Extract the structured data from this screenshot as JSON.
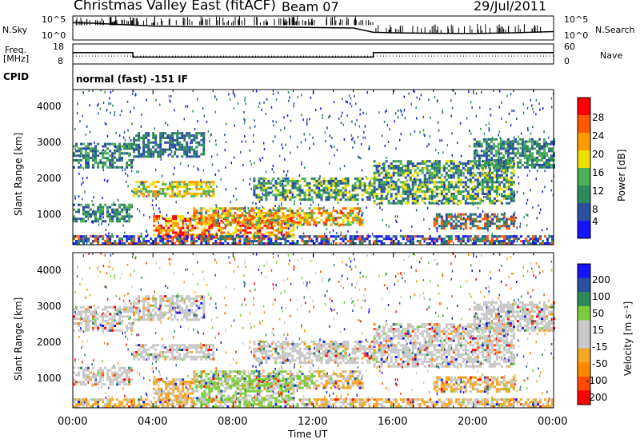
{
  "header": {
    "title": "Christmas Valley East (fitACF)",
    "beam": "Beam 07",
    "date": "29/Jul/2011"
  },
  "left_labels": {
    "nsky": "N.Sky",
    "freq_line1": "Freq.",
    "freq_line2": "[MHz]",
    "cpid": "CPID"
  },
  "right_labels": {
    "nsearch": "N.Search",
    "nave": "Nave"
  },
  "cpid_text": "normal (fast) -151 IF",
  "colors": {
    "power": [
      "#1414ff",
      "#2a50a0",
      "#2e8a5a",
      "#4fae58",
      "#f0e000",
      "#ff9a00",
      "#ff5a00",
      "#ff0000"
    ],
    "velocity": [
      "#ff0000",
      "#ff4a00",
      "#ff8a00",
      "#f5a623",
      "#c8c8c8",
      "#c8c8c8",
      "#7ccd3c",
      "#2e8b57",
      "#2a50a0",
      "#1414ff"
    ],
    "ground": "#c8c8c8"
  },
  "chart_data": [
    {
      "type": "line",
      "name_label": "N.Sky",
      "y_ticks": [
        "10^5",
        "10^0"
      ],
      "right_ticks": [
        "10^5",
        "10^0"
      ],
      "series": [
        {
          "name": "N.Sky",
          "x": [
            0,
            1,
            2,
            3,
            4,
            6,
            8,
            10,
            12,
            14,
            15,
            16,
            18,
            20,
            22,
            24
          ],
          "y": [
            0.72,
            0.7,
            0.66,
            0.62,
            0.58,
            0.55,
            0.55,
            0.54,
            0.52,
            0.5,
            0.32,
            0.3,
            0.28,
            0.27,
            0.3,
            0.35
          ]
        }
      ],
      "right_label": "N.Search"
    },
    {
      "type": "line",
      "y_ticks": [
        "18",
        "8"
      ],
      "right_ticks": [
        "60",
        "0"
      ],
      "series": [
        {
          "name": "Freq.",
          "x": [
            0,
            3,
            3,
            15,
            15,
            24
          ],
          "y": [
            14,
            14,
            10.8,
            10.8,
            14,
            14
          ]
        },
        {
          "name": "Nave",
          "x": [
            0,
            24
          ],
          "y": [
            11.5,
            11.5
          ]
        }
      ]
    },
    {
      "type": "heatmap",
      "ylabel": "Slant Range [km]",
      "y_ticks": [
        "4000",
        "3000",
        "2000",
        "1000"
      ],
      "ylim": [
        180,
        4500
      ],
      "xlim": [
        0,
        24
      ],
      "colorbar_label": "Power [dB]",
      "colorbar_ticks": [
        "28",
        "24",
        "20",
        "16",
        "12",
        "8",
        "4"
      ],
      "colorbar_range": [
        0,
        32
      ]
    },
    {
      "type": "heatmap",
      "ylabel": "Slant Range [km]",
      "y_ticks": [
        "4000",
        "3000",
        "2000",
        "1000"
      ],
      "ylim": [
        180,
        4500
      ],
      "xlim": [
        0,
        24
      ],
      "colorbar_label": "Velocity [m s⁻¹]",
      "colorbar_ticks": [
        "200",
        "100",
        "50",
        "15",
        "-15",
        "-50",
        "-100",
        "-200"
      ],
      "x_ticks": [
        "00:00",
        "04:00",
        "08:00",
        "12:00",
        "16:00",
        "20:00",
        "00:00"
      ],
      "xlabel": "Time UT"
    }
  ]
}
